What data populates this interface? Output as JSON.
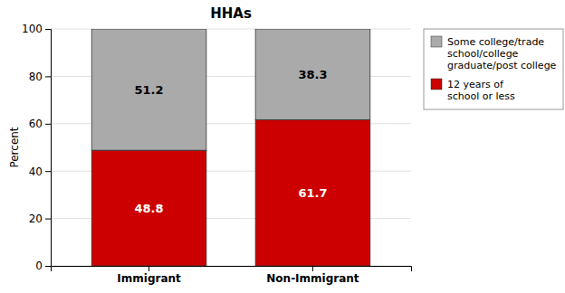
{
  "chart_data": {
    "type": "bar",
    "title": "HHAs",
    "categories": [
      "Immigrant",
      "Non-Immigrant"
    ],
    "series": [
      {
        "name": "12 years of\nschool or less",
        "color": "#cc0000",
        "values": [
          48.8,
          61.7
        ]
      },
      {
        "name": "Some college/trade\nschool/college\ngraduate/post college",
        "color": "#aaaaaa",
        "values": [
          51.2,
          38.3
        ]
      }
    ],
    "ylabel": "Percent",
    "ylim": [
      0,
      100
    ],
    "yticks": [
      0,
      20,
      40,
      60,
      80,
      100
    ],
    "stacked": true,
    "data_labels": true,
    "grid": true,
    "legend": "right"
  }
}
